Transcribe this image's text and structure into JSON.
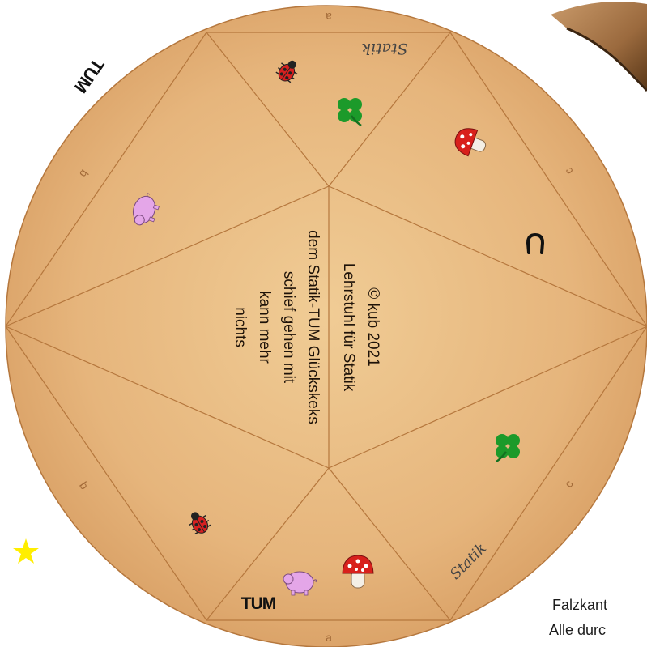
{
  "center_text": {
    "left_lines": [
      "nichts",
      "kann mehr",
      "schief gehen mit",
      "dem Statik-TUM  Glückskeks"
    ],
    "right_lines": [
      "© kub 2021",
      "Lehrstuhl für Statik"
    ]
  },
  "edge_labels": {
    "top": "a",
    "bottom": "a",
    "upper_left": "b",
    "lower_left": "b",
    "upper_right": "c",
    "lower_right": "c"
  },
  "logo_text": "TUM",
  "signature_text": "Statik",
  "captions": {
    "line1": "Falzkant",
    "line2": "Alle durc"
  },
  "colors": {
    "paper_light": "#f0cc95",
    "paper_dark": "#dba46a",
    "fold_line": "#b5773d",
    "star": "#ffee00",
    "ladybug": "#d62020",
    "clover": "#1c9a2a",
    "pig": "#e4a6e8",
    "mushroom_cap": "#d8201c"
  },
  "icons": [
    "ladybug-icon",
    "clover-icon",
    "mushroom-icon",
    "horseshoe-icon",
    "pig-icon",
    "tum-logo-icon",
    "statik-signature-icon",
    "star-icon"
  ]
}
